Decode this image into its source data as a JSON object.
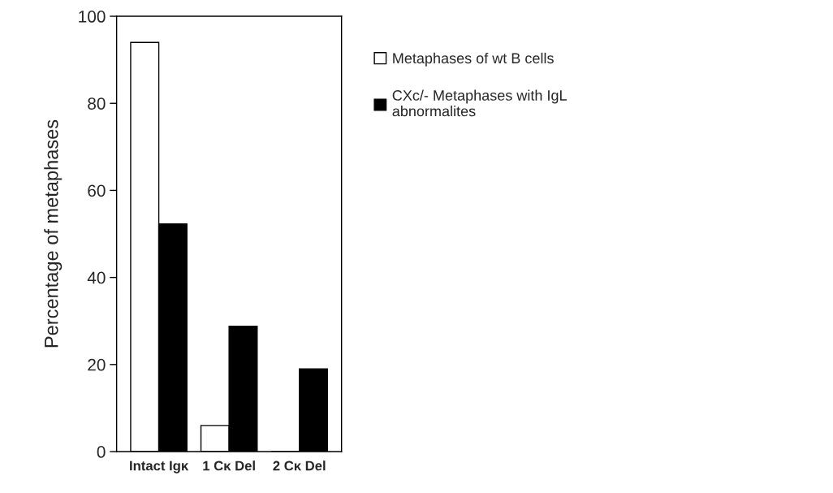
{
  "chart_data": {
    "type": "bar",
    "ylabel": "Percentage of metaphases",
    "categories": [
      "Intact Igκ",
      "1 Cκ Del",
      "2 Cκ Del"
    ],
    "series": [
      {
        "name": "Metaphases of wt B cells",
        "color": "#ffffff",
        "values": [
          94,
          6,
          0
        ]
      },
      {
        "name": "CXc/- Metaphases with IgL abnormalites",
        "color": "#000000",
        "values": [
          52.3,
          28.8,
          19
        ]
      }
    ],
    "ylim": [
      0,
      100
    ],
    "yticks": [
      0,
      20,
      40,
      60,
      80,
      100
    ],
    "grid": false,
    "legend": "right"
  }
}
